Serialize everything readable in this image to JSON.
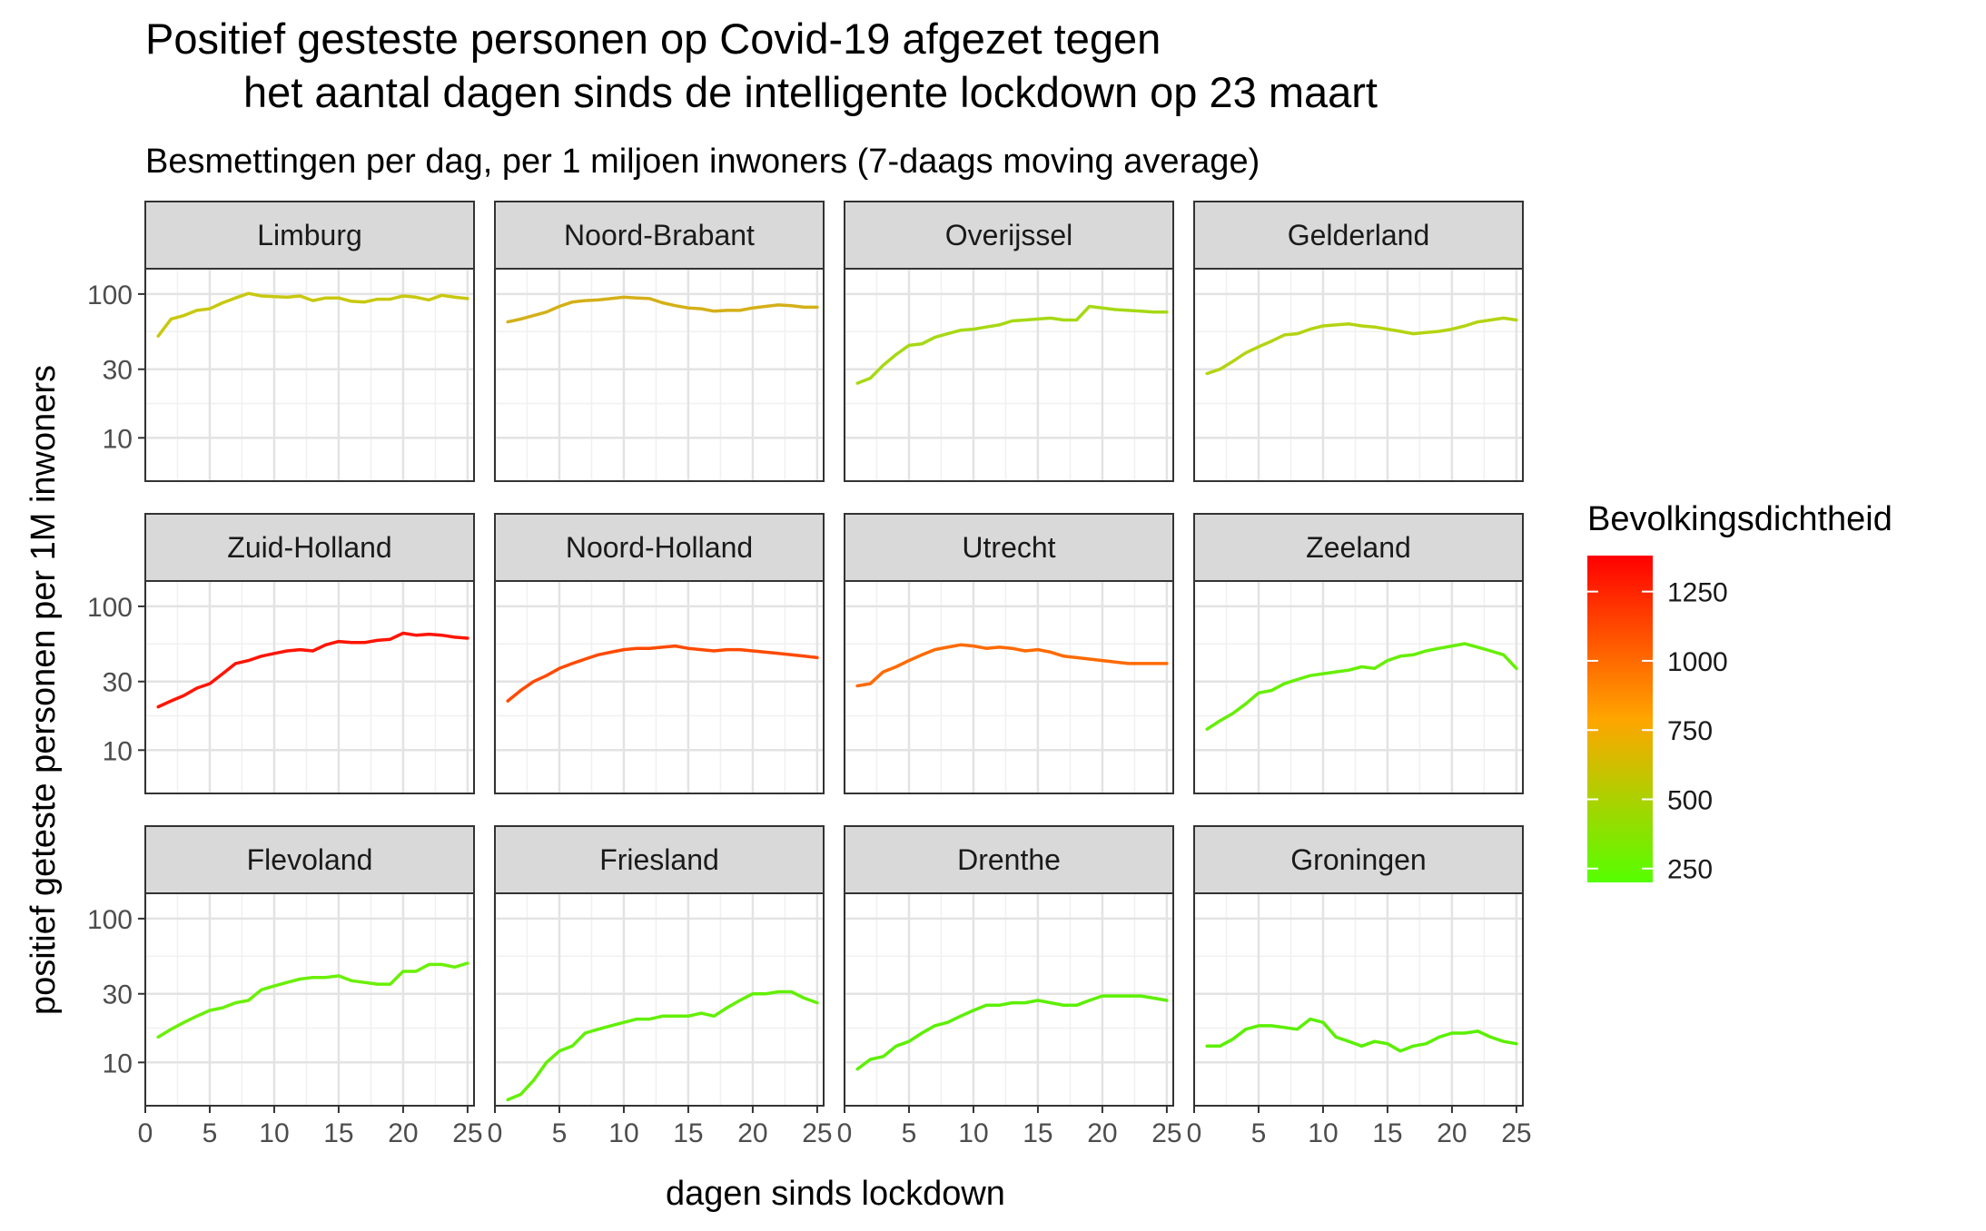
{
  "title_line1": "Positief gesteste personen op Covid-19 afgezet tegen",
  "title_line2": "het aantal dagen sinds de intelligente lockdown op 23 maart",
  "subtitle": "Besmettingen per dag, per 1 miljoen inwoners (7-daags moving average)",
  "chart_data": {
    "type": "line",
    "facet_layout": "4 columns x 3 rows",
    "xlabel": "dagen sinds lockdown",
    "ylabel": "positief geteste personen per 1M inwoners",
    "x_scale": "linear",
    "y_scale": "log10",
    "xlim": [
      0,
      25.5
    ],
    "ylim": [
      5,
      150
    ],
    "x_ticks": [
      0,
      5,
      10,
      15,
      20,
      25
    ],
    "y_ticks": [
      10,
      30,
      100
    ],
    "grid": true,
    "legend": {
      "title": "Bevolkingsdichtheid",
      "placement": "right",
      "type": "colorbar",
      "ticks": [
        250,
        500,
        750,
        1000,
        1250
      ],
      "min": 200,
      "max": 1380,
      "color_low": "#55ff00",
      "color_mid": "#ffa500",
      "color_high": "#ff0000"
    },
    "x": [
      1,
      2,
      3,
      4,
      5,
      6,
      7,
      8,
      9,
      10,
      11,
      12,
      13,
      14,
      15,
      16,
      17,
      18,
      19,
      20,
      21,
      22,
      23,
      24,
      25
    ],
    "panels": [
      {
        "name": "Limburg",
        "color": "#c8c810",
        "values": [
          51,
          67,
          71,
          77,
          79,
          87,
          94,
          101,
          97,
          96,
          95,
          97,
          90,
          94,
          94,
          89,
          88,
          92,
          92,
          97,
          95,
          91,
          98,
          95,
          93
        ]
      },
      {
        "name": "Noord-Brabant",
        "color": "#d4b018",
        "values": [
          64,
          67,
          71,
          75,
          82,
          88,
          90,
          91,
          93,
          95,
          94,
          93,
          87,
          83,
          80,
          79,
          76,
          77,
          77,
          80,
          82,
          84,
          83,
          81,
          81
        ]
      },
      {
        "name": "Overijssel",
        "color": "#a6d914",
        "values": [
          24,
          26,
          32,
          38,
          44,
          45,
          50,
          53,
          56,
          57,
          59,
          61,
          65,
          66,
          67,
          68,
          66,
          66,
          82,
          80,
          78,
          77,
          76,
          75,
          75
        ]
      },
      {
        "name": "Gelderland",
        "color": "#b4d412",
        "values": [
          28,
          30,
          34,
          39,
          43,
          47,
          52,
          53,
          57,
          60,
          61,
          62,
          60,
          59,
          57,
          55,
          53,
          54,
          55,
          57,
          60,
          64,
          66,
          68,
          66
        ]
      },
      {
        "name": "Zuid-Holland",
        "color": "#ff1400",
        "values": [
          20,
          22,
          24,
          27,
          29,
          34,
          40,
          42,
          45,
          47,
          49,
          50,
          49,
          54,
          57,
          56,
          56,
          58,
          59,
          65,
          63,
          64,
          63,
          61,
          60
        ]
      },
      {
        "name": "Noord-Holland",
        "color": "#ff4a00",
        "values": [
          22,
          26,
          30,
          33,
          37,
          40,
          43,
          46,
          48,
          50,
          51,
          51,
          52,
          53,
          51,
          50,
          49,
          50,
          50,
          49,
          48,
          47,
          46,
          45,
          44
        ]
      },
      {
        "name": "Utrecht",
        "color": "#ff6a00",
        "values": [
          28,
          29,
          35,
          38,
          42,
          46,
          50,
          52,
          54,
          53,
          51,
          52,
          51,
          49,
          50,
          48,
          45,
          44,
          43,
          42,
          41,
          40,
          40,
          40,
          40
        ]
      },
      {
        "name": "Zeeland",
        "color": "#66ef04",
        "values": [
          14,
          16,
          18,
          21,
          25,
          26,
          29,
          31,
          33,
          34,
          35,
          36,
          38,
          37,
          42,
          45,
          46,
          49,
          51,
          53,
          55,
          52,
          49,
          46,
          37
        ]
      },
      {
        "name": "Flevoland",
        "color": "#6af006",
        "values": [
          15,
          17,
          19,
          21,
          23,
          24,
          26,
          27,
          32,
          34,
          36,
          38,
          39,
          39,
          40,
          37,
          36,
          35,
          35,
          43,
          43,
          48,
          48,
          46,
          49
        ]
      },
      {
        "name": "Friesland",
        "color": "#62f004",
        "values": [
          5.5,
          6,
          7.5,
          10,
          12,
          13,
          16,
          17,
          18,
          19,
          20,
          20,
          21,
          21,
          21,
          22,
          21,
          24,
          27,
          30,
          30,
          31,
          31,
          28,
          26
        ]
      },
      {
        "name": "Drenthe",
        "color": "#5cf002",
        "values": [
          9,
          10.5,
          11,
          13,
          14,
          16,
          18,
          19,
          21,
          23,
          25,
          25,
          26,
          26,
          27,
          26,
          25,
          25,
          27,
          29,
          29,
          29,
          29,
          28,
          27
        ]
      },
      {
        "name": "Groningen",
        "color": "#5af000",
        "values": [
          13,
          13,
          14.5,
          17,
          18,
          18,
          17.5,
          17,
          20,
          19,
          15,
          14,
          13,
          14,
          13.5,
          12,
          13,
          13.5,
          15,
          16,
          16,
          16.5,
          15,
          14,
          13.5
        ]
      }
    ]
  }
}
